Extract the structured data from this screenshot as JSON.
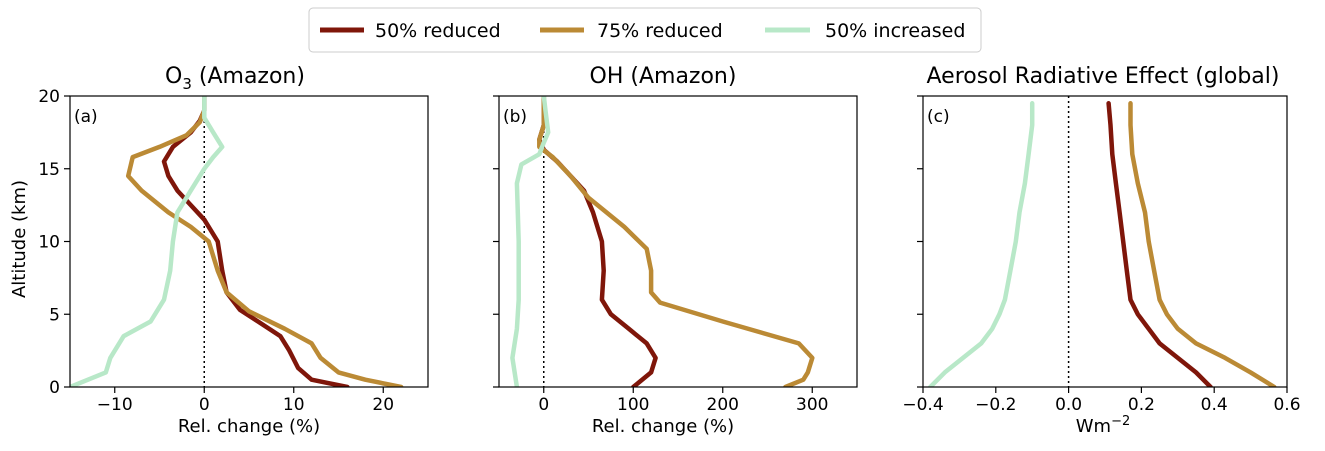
{
  "legend": {
    "entries": [
      {
        "label": "50% reduced",
        "color": "#7f160a"
      },
      {
        "label": "75% reduced",
        "color": "#bb8a35"
      },
      {
        "label": "50% increased",
        "color": "#b8e8c8"
      }
    ]
  },
  "chart_data": [
    {
      "type": "line",
      "panel_label": "(a)",
      "title_main": "O",
      "title_sub": "3",
      "title_rest": " (Amazon)",
      "xlabel": "Rel. change (%)",
      "ylabel": "Altitude (km)",
      "xlim": [
        -15,
        25
      ],
      "ylim": [
        0,
        20
      ],
      "xticks": [
        -10,
        0,
        10,
        20
      ],
      "xtick_labels": [
        "−10",
        "0",
        "10",
        "20"
      ],
      "yticks": [
        0,
        5,
        10,
        15,
        20
      ],
      "ytick_labels": [
        "0",
        "5",
        "10",
        "15",
        "20"
      ],
      "series": [
        {
          "name": "50% reduced",
          "color": "#7f160a",
          "points": [
            [
              16,
              0
            ],
            [
              12,
              0.5
            ],
            [
              10.5,
              1.3
            ],
            [
              9.5,
              2.5
            ],
            [
              8.5,
              3.5
            ],
            [
              6,
              4.5
            ],
            [
              4,
              5.3
            ],
            [
              2.5,
              6.5
            ],
            [
              2,
              8
            ],
            [
              1.5,
              10
            ],
            [
              0,
              11.5
            ],
            [
              -1.5,
              12.5
            ],
            [
              -3,
              13.5
            ],
            [
              -4,
              14.5
            ],
            [
              -4.5,
              15.5
            ],
            [
              -3.5,
              16.5
            ],
            [
              -1.5,
              17.5
            ],
            [
              -0.5,
              18.3
            ],
            [
              0,
              19
            ],
            [
              0,
              20
            ]
          ]
        },
        {
          "name": "75% reduced",
          "color": "#bb8a35",
          "points": [
            [
              22,
              0
            ],
            [
              18,
              0.5
            ],
            [
              15,
              1
            ],
            [
              13,
              2
            ],
            [
              12,
              3
            ],
            [
              9,
              4
            ],
            [
              5,
              5.2
            ],
            [
              2.5,
              6.5
            ],
            [
              1.5,
              8
            ],
            [
              0.5,
              10
            ],
            [
              -1.5,
              11
            ],
            [
              -4,
              12
            ],
            [
              -7,
              13.5
            ],
            [
              -8.5,
              14.5
            ],
            [
              -8,
              15.8
            ],
            [
              -5,
              16.5
            ],
            [
              -2,
              17.3
            ],
            [
              -0.5,
              18.2
            ],
            [
              0,
              19
            ],
            [
              0,
              20
            ]
          ]
        },
        {
          "name": "50% increased",
          "color": "#b8e8c8",
          "points": [
            [
              -15,
              0
            ],
            [
              -11,
              1
            ],
            [
              -10.5,
              2
            ],
            [
              -9,
              3.5
            ],
            [
              -6,
              4.5
            ],
            [
              -4.5,
              6
            ],
            [
              -3.8,
              8
            ],
            [
              -3.5,
              10
            ],
            [
              -3,
              12
            ],
            [
              -1.5,
              13.5
            ],
            [
              0,
              15
            ],
            [
              1,
              15.8
            ],
            [
              2,
              16.5
            ],
            [
              1,
              17.5
            ],
            [
              0,
              18.5
            ],
            [
              0,
              20
            ]
          ]
        }
      ]
    },
    {
      "type": "line",
      "panel_label": "(b)",
      "title_main": "OH (Amazon)",
      "xlabel": "Rel. change (%)",
      "xlim": [
        -50,
        350
      ],
      "ylim": [
        0,
        20
      ],
      "xticks": [
        0,
        100,
        200,
        300
      ],
      "xtick_labels": [
        "0",
        "100",
        "200",
        "300"
      ],
      "yticks": [
        0,
        5,
        10,
        15,
        20
      ],
      "series": [
        {
          "name": "50% reduced",
          "color": "#7f160a",
          "points": [
            [
              100,
              0
            ],
            [
              120,
              1
            ],
            [
              125,
              2
            ],
            [
              115,
              3
            ],
            [
              95,
              4
            ],
            [
              75,
              5
            ],
            [
              65,
              6
            ],
            [
              67,
              8
            ],
            [
              65,
              10
            ],
            [
              55,
              12
            ],
            [
              45,
              13.5
            ],
            [
              30,
              14.5
            ],
            [
              15,
              15.5
            ],
            [
              0,
              16.3
            ],
            [
              -5,
              17
            ],
            [
              0,
              18
            ],
            [
              0,
              20
            ]
          ]
        },
        {
          "name": "75% reduced",
          "color": "#bb8a35",
          "points": [
            [
              270,
              0
            ],
            [
              290,
              0.5
            ],
            [
              295,
              1
            ],
            [
              300,
              2
            ],
            [
              285,
              3
            ],
            [
              200,
              4.5
            ],
            [
              130,
              5.8
            ],
            [
              120,
              6.5
            ],
            [
              120,
              8
            ],
            [
              115,
              9.5
            ],
            [
              90,
              11
            ],
            [
              50,
              13
            ],
            [
              30,
              14.5
            ],
            [
              10,
              15.8
            ],
            [
              -5,
              16.5
            ],
            [
              -5,
              17
            ],
            [
              0,
              18
            ],
            [
              0,
              20
            ]
          ]
        },
        {
          "name": "50% increased",
          "color": "#b8e8c8",
          "points": [
            [
              -30,
              0
            ],
            [
              -35,
              2
            ],
            [
              -30,
              4
            ],
            [
              -28,
              6
            ],
            [
              -28,
              10
            ],
            [
              -30,
              14
            ],
            [
              -25,
              15.3
            ],
            [
              -5,
              16
            ],
            [
              0,
              16.8
            ],
            [
              5,
              17.5
            ],
            [
              2,
              19
            ],
            [
              0,
              20
            ]
          ]
        }
      ]
    },
    {
      "type": "line",
      "panel_label": "(c)",
      "title_main": "Aerosol Radiative Effect (global)",
      "xlabel_main": "Wm",
      "xlabel_sup": "−2",
      "xlim": [
        -0.4,
        0.6
      ],
      "ylim": [
        0,
        20
      ],
      "xticks": [
        -0.4,
        -0.2,
        0,
        0.2,
        0.4,
        0.6
      ],
      "xtick_labels": [
        "−0.4",
        "−0.2",
        "0.0",
        "0.2",
        "0.4",
        "0.6"
      ],
      "yticks": [
        0,
        5,
        10,
        15,
        20
      ],
      "series": [
        {
          "name": "50% reduced",
          "color": "#7f160a",
          "points": [
            [
              0.39,
              0
            ],
            [
              0.35,
              1
            ],
            [
              0.3,
              2
            ],
            [
              0.25,
              3
            ],
            [
              0.22,
              4
            ],
            [
              0.19,
              5
            ],
            [
              0.17,
              6
            ],
            [
              0.16,
              8
            ],
            [
              0.15,
              10
            ],
            [
              0.14,
              12
            ],
            [
              0.13,
              14
            ],
            [
              0.12,
              16
            ],
            [
              0.115,
              18
            ],
            [
              0.11,
              19.5
            ]
          ]
        },
        {
          "name": "75% reduced",
          "color": "#bb8a35",
          "points": [
            [
              0.565,
              0
            ],
            [
              0.5,
              1
            ],
            [
              0.43,
              2
            ],
            [
              0.35,
              3
            ],
            [
              0.3,
              4
            ],
            [
              0.27,
              5
            ],
            [
              0.25,
              6
            ],
            [
              0.235,
              8
            ],
            [
              0.22,
              10
            ],
            [
              0.21,
              12
            ],
            [
              0.19,
              14
            ],
            [
              0.175,
              16
            ],
            [
              0.17,
              18
            ],
            [
              0.17,
              19.5
            ]
          ]
        },
        {
          "name": "50% increased",
          "color": "#b8e8c8",
          "points": [
            [
              -0.38,
              0
            ],
            [
              -0.34,
              1
            ],
            [
              -0.29,
              2
            ],
            [
              -0.24,
              3
            ],
            [
              -0.21,
              4
            ],
            [
              -0.19,
              5
            ],
            [
              -0.175,
              6
            ],
            [
              -0.16,
              8
            ],
            [
              -0.145,
              10
            ],
            [
              -0.135,
              12
            ],
            [
              -0.12,
              14
            ],
            [
              -0.11,
              16
            ],
            [
              -0.1,
              18
            ],
            [
              -0.1,
              19.5
            ]
          ]
        }
      ]
    }
  ]
}
